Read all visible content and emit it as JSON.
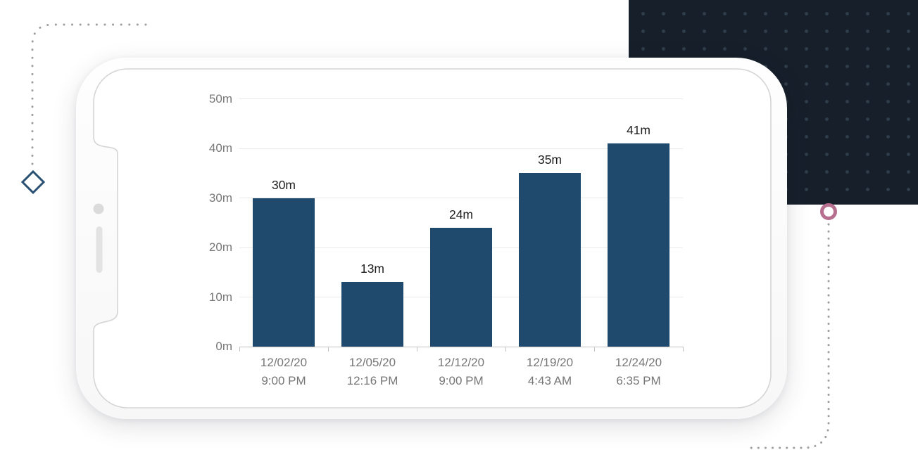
{
  "decorations": {
    "dot_grid_patch": {
      "background": "#161F2A",
      "dot_color": "#303D4B"
    },
    "diamond_icon_color": "#2A5173",
    "pink_ring_color": "#B76F8F",
    "dotted_path_color": "#9E9E9E"
  },
  "phone": {
    "body_color": "#FBFBFB",
    "screen_outline_color": "#D5D5D5",
    "camera_color": "#DBDBDB",
    "speaker_color": "#E3E3E3"
  },
  "chart_data": {
    "type": "bar",
    "title": "",
    "xlabel": "",
    "ylabel": "",
    "unit": "minutes",
    "categories": [
      {
        "date": "12/02/20",
        "time": "9:00 PM"
      },
      {
        "date": "12/05/20",
        "time": "12:16 PM"
      },
      {
        "date": "12/12/20",
        "time": "9:00 PM"
      },
      {
        "date": "12/19/20",
        "time": "4:43 AM"
      },
      {
        "date": "12/24/20",
        "time": "6:35 PM"
      }
    ],
    "values": [
      30,
      13,
      24,
      35,
      41
    ],
    "value_labels": [
      "30m",
      "13m",
      "24m",
      "35m",
      "41m"
    ],
    "y_ticks": [
      {
        "label": "50m",
        "value": 50
      },
      {
        "label": "40m",
        "value": 40
      },
      {
        "label": "30m",
        "value": 30
      },
      {
        "label": "20m",
        "value": 20
      },
      {
        "label": "10m",
        "value": 10
      },
      {
        "label": "0m",
        "value": 0
      }
    ],
    "ylim": [
      0,
      50
    ],
    "grid": true,
    "legend": false,
    "bar_color": "#1F4A6E",
    "label_color": "#767676"
  }
}
